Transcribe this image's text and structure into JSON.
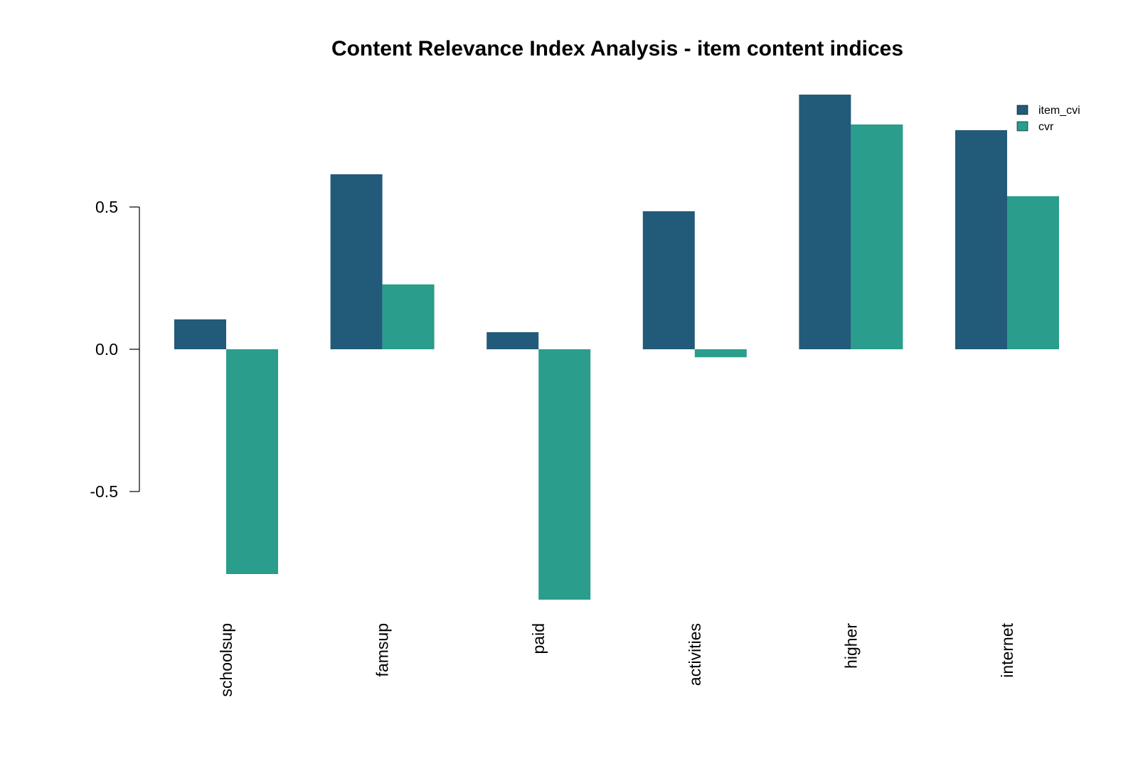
{
  "chart_data": {
    "type": "bar",
    "title": "Content Relevance Index Analysis - item content indices",
    "xlabel": "",
    "ylabel": "",
    "categories": [
      "schoolsup",
      "famsup",
      "paid",
      "activities",
      "higher",
      "internet"
    ],
    "series": [
      {
        "name": "item_cvi",
        "color": "#225a7a",
        "values": [
          0.105,
          0.615,
          0.06,
          0.485,
          0.895,
          0.77
        ]
      },
      {
        "name": "cvr",
        "color": "#2a9d8c",
        "values": [
          -0.79,
          0.228,
          -0.88,
          -0.028,
          0.79,
          0.538
        ]
      }
    ],
    "yticks": [
      -0.5,
      0.0,
      0.5
    ],
    "ytick_labels": [
      "-0.5",
      "0.0",
      "0.5"
    ],
    "ylim": [
      -0.88,
      0.895
    ],
    "grid": false,
    "legend_position": "top-right"
  }
}
